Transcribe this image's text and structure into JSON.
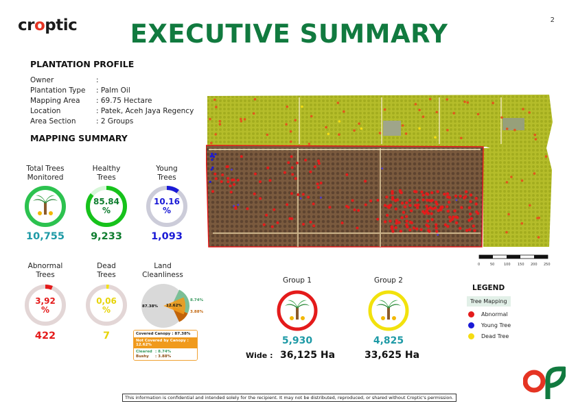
{
  "brand": {
    "logo_pre": "cr",
    "logo_o": "o",
    "logo_post": "ptic"
  },
  "page_number": "2",
  "title": "EXECUTIVE SUMMARY",
  "profile": {
    "heading": "PLANTATION PROFILE",
    "rows": [
      {
        "key": "Owner",
        "value": ":"
      },
      {
        "key": "Plantation Type",
        "value": ": Palm Oil"
      },
      {
        "key": "Mapping Area",
        "value": ": 69.75 Hectare"
      },
      {
        "key": "Location",
        "value": ": Patek, Aceh Jaya Regency"
      },
      {
        "key": "Area Section",
        "value": ": 2 Groups"
      }
    ]
  },
  "mapping_summary": {
    "heading": "MAPPING SUMMARY",
    "total": {
      "label_1": "Total Trees",
      "label_2": "Monitored",
      "value": "10,755"
    },
    "healthy": {
      "label_1": "Healthy",
      "label_2": "Trees",
      "pct": "85.84",
      "pct_unit": "%",
      "fraction": 0.8584,
      "value": "9,233"
    },
    "young": {
      "label_1": "Young",
      "label_2": "Trees",
      "pct": "10.16",
      "pct_unit": "%",
      "fraction": 0.1016,
      "value": "1,093"
    },
    "abnormal": {
      "label_1": "Abnormal",
      "label_2": "Trees",
      "pct": "3,92",
      "pct_unit": "%",
      "fraction": 0.0392,
      "value": "422"
    },
    "dead": {
      "label_1": "Dead",
      "label_2": "Trees",
      "pct": "0,06",
      "pct_unit": "%",
      "fraction": 0.0006,
      "value": "7"
    },
    "land": {
      "label_1": "Land",
      "label_2": "Cleanliness",
      "covered_pct": "87.38%",
      "not_covered_pct": "12.62%",
      "cleared_pct": "8.74%",
      "bushy_pct": "3.88%",
      "covered_fraction": 0.8738,
      "cleared_fraction": 0.0874,
      "bushy_fraction": 0.0388,
      "box": {
        "covered": "Covered Canopy   : 87.38%",
        "not_covered": "Not Covered by Canopy : 12.62%",
        "cleared_k": "Cleared",
        "cleared_v": ": 8.74%",
        "bushy_k": "Bushy",
        "bushy_v": ": 3.88%"
      }
    }
  },
  "scale_bar": {
    "ticks": [
      "0",
      "50",
      "100",
      "150",
      "200",
      "250"
    ]
  },
  "groups": {
    "wide_label": "Wide :",
    "g1": {
      "label": "Group 1",
      "count": "5,930",
      "area": "36,125 Ha"
    },
    "g2": {
      "label": "Group 2",
      "count": "4,825",
      "area": "33,625 Ha"
    }
  },
  "legend": {
    "title": "LEGEND",
    "tag": "Tree Mapping",
    "items": [
      {
        "label": "Abnormal",
        "color": "#e41b1b"
      },
      {
        "label": "Young Tree",
        "color": "#1a1ad6"
      },
      {
        "label": "Dead Tree",
        "color": "#f5dc13"
      }
    ]
  },
  "colors": {
    "green": "#117a3f",
    "teal": "#1e9aa6",
    "red": "#e53423",
    "yellow": "#f2e20d",
    "blue": "#1a1ad6",
    "orange": "#f09a1c"
  },
  "footer": "This information is confidential and intended solely for the recipient. It may not be distributed, reproduced, or shared without Croptic's permission."
}
